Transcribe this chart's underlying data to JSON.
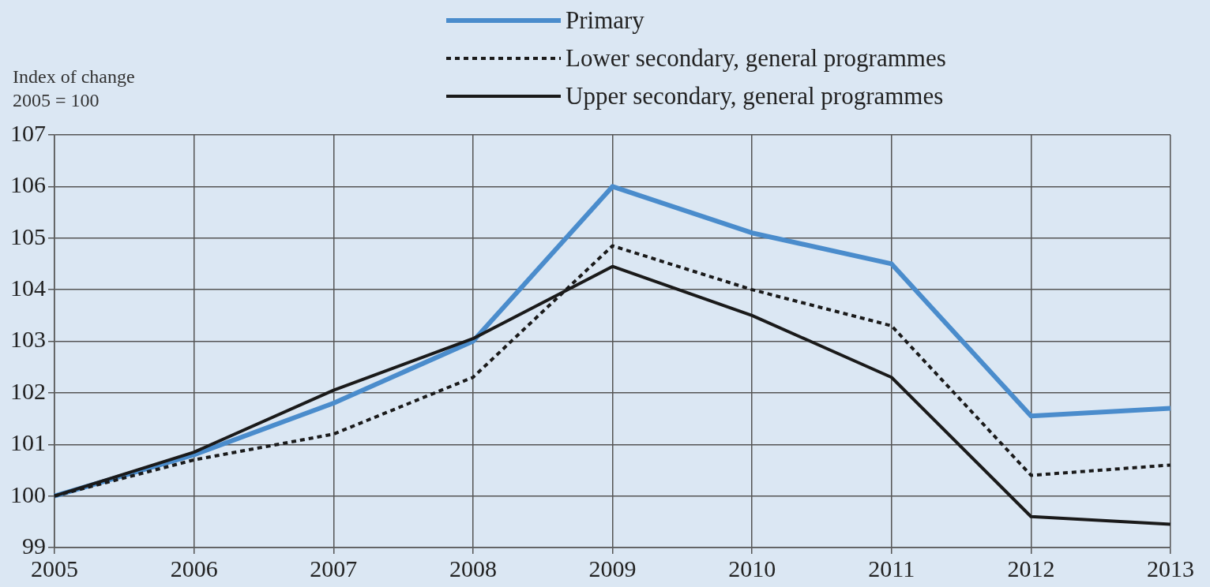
{
  "chart_data": {
    "type": "line",
    "ylabel": "Index of change\n2005 = 100",
    "categories": [
      "2005",
      "2006",
      "2007",
      "2008",
      "2009",
      "2010",
      "2011",
      "2012",
      "2013"
    ],
    "series": [
      {
        "name": "Primary",
        "color": "#4a8ccc",
        "line_style": "solid",
        "values": [
          100,
          100.8,
          101.8,
          103.0,
          106.0,
          105.1,
          104.5,
          101.55,
          101.7
        ]
      },
      {
        "name": "Lower secondary, general programmes",
        "color": "#1a1a1a",
        "line_style": "dotted",
        "values": [
          100,
          100.7,
          101.2,
          102.3,
          104.85,
          104.0,
          103.3,
          100.4,
          100.6
        ]
      },
      {
        "name": "Upper secondary, general programmes",
        "color": "#1a1a1a",
        "line_style": "solid",
        "values": [
          100,
          100.85,
          102.05,
          103.05,
          104.45,
          103.5,
          102.3,
          99.6,
          99.45
        ]
      }
    ],
    "ylim": [
      99,
      107
    ],
    "yticks": [
      99,
      100,
      101,
      102,
      103,
      104,
      105,
      106,
      107
    ],
    "grid": true,
    "legend": "top",
    "marker": "none"
  }
}
